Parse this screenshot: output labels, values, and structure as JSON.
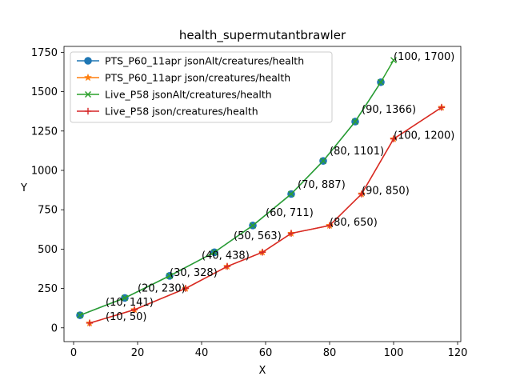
{
  "chart_data": {
    "type": "line",
    "title": "health_supermutantbrawler",
    "xlabel": "X",
    "ylabel": "Y",
    "xlim": [
      -3,
      121
    ],
    "ylim": [
      -87.5,
      1787.5
    ],
    "xticks": [
      0,
      20,
      40,
      60,
      80,
      100,
      120
    ],
    "yticks": [
      0,
      250,
      500,
      750,
      1000,
      1250,
      1500,
      1750
    ],
    "grid": false,
    "legend_position": "top-left",
    "series": [
      {
        "name": "PTS_P60_11apr jsonAlt/creatures/health",
        "color": "#1f77b4",
        "marker": "circle",
        "x": [
          2,
          16,
          30,
          44,
          56,
          68,
          78,
          88,
          96
        ],
        "y": [
          80,
          190,
          330,
          480,
          650,
          850,
          1060,
          1310,
          1560
        ]
      },
      {
        "name": "PTS_P60_11apr json/creatures/health",
        "color": "#ff7f0e",
        "marker": "star",
        "x": [
          5,
          19,
          35,
          48,
          59,
          68,
          80,
          90,
          100,
          115
        ],
        "y": [
          30,
          115,
          250,
          390,
          480,
          600,
          650,
          850,
          1200,
          1400
        ]
      },
      {
        "name": "Live_P58 jsonAlt/creatures/health",
        "color": "#2ca02c",
        "marker": "x",
        "x": [
          2,
          16,
          30,
          44,
          56,
          68,
          78,
          88,
          96,
          100
        ],
        "y": [
          80,
          190,
          330,
          480,
          650,
          850,
          1060,
          1310,
          1560,
          1700
        ]
      },
      {
        "name": "Live_P58 json/creatures/health",
        "color": "#d62728",
        "marker": "plus",
        "x": [
          5,
          19,
          35,
          48,
          59,
          68,
          80,
          90,
          100,
          115
        ],
        "y": [
          30,
          115,
          250,
          390,
          480,
          600,
          650,
          850,
          1200,
          1400
        ]
      }
    ],
    "annotations": [
      {
        "x": 10,
        "y": 141,
        "text": "(10, 141)"
      },
      {
        "x": 10,
        "y": 50,
        "text": "(10, 50)"
      },
      {
        "x": 20,
        "y": 230,
        "text": "(20, 230)"
      },
      {
        "x": 30,
        "y": 328,
        "text": "(30, 328)"
      },
      {
        "x": 40,
        "y": 438,
        "text": "(40, 438)"
      },
      {
        "x": 50,
        "y": 563,
        "text": "(50, 563)"
      },
      {
        "x": 60,
        "y": 711,
        "text": "(60, 711)"
      },
      {
        "x": 70,
        "y": 887,
        "text": "(70, 887)"
      },
      {
        "x": 80,
        "y": 1101,
        "text": "(80, 1101)"
      },
      {
        "x": 80,
        "y": 650,
        "text": "(80, 650)"
      },
      {
        "x": 90,
        "y": 1366,
        "text": "(90, 1366)"
      },
      {
        "x": 90,
        "y": 850,
        "text": "(90, 850)"
      },
      {
        "x": 100,
        "y": 1700,
        "text": "(100, 1700)"
      },
      {
        "x": 100,
        "y": 1200,
        "text": "(100, 1200)"
      }
    ]
  }
}
